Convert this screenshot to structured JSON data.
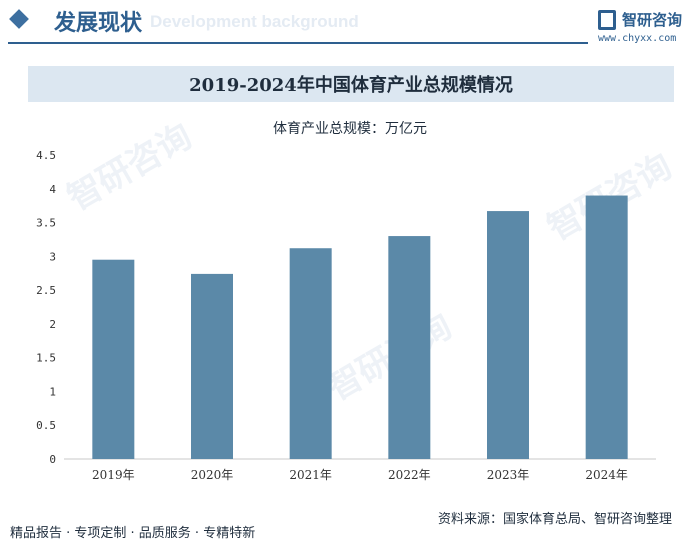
{
  "header": {
    "section_title": "发展现状",
    "section_subtitle": "Development background",
    "logo_name": "智研咨询",
    "logo_url": "www.chyxx.com"
  },
  "watermark_text": "智研咨询",
  "footer": {
    "tagline": "精品报告 · 专项定制 · 品质服务 · 专精特新",
    "source": "资料来源：国家体育总局、智研咨询整理"
  },
  "colors": {
    "bar": "#5b89a8",
    "accent": "#2e5f8f",
    "title_band": "#dce7f1"
  },
  "chart_data": {
    "type": "bar",
    "title": "2019-2024年中国体育产业总规模情况",
    "ylabel": "体育产业总规模：万亿元",
    "categories": [
      "2019年",
      "2020年",
      "2021年",
      "2022年",
      "2023年",
      "2024年"
    ],
    "values": [
      2.95,
      2.74,
      3.12,
      3.3,
      3.67,
      3.9
    ],
    "ylim": [
      0,
      4.5
    ],
    "yticks": [
      "0",
      "0.5",
      "1",
      "1.5",
      "2",
      "2.5",
      "3",
      "3.5",
      "4",
      "4.5"
    ],
    "ytick_values": [
      0,
      0.5,
      1,
      1.5,
      2,
      2.5,
      3,
      3.5,
      4,
      4.5
    ],
    "grid": false
  }
}
